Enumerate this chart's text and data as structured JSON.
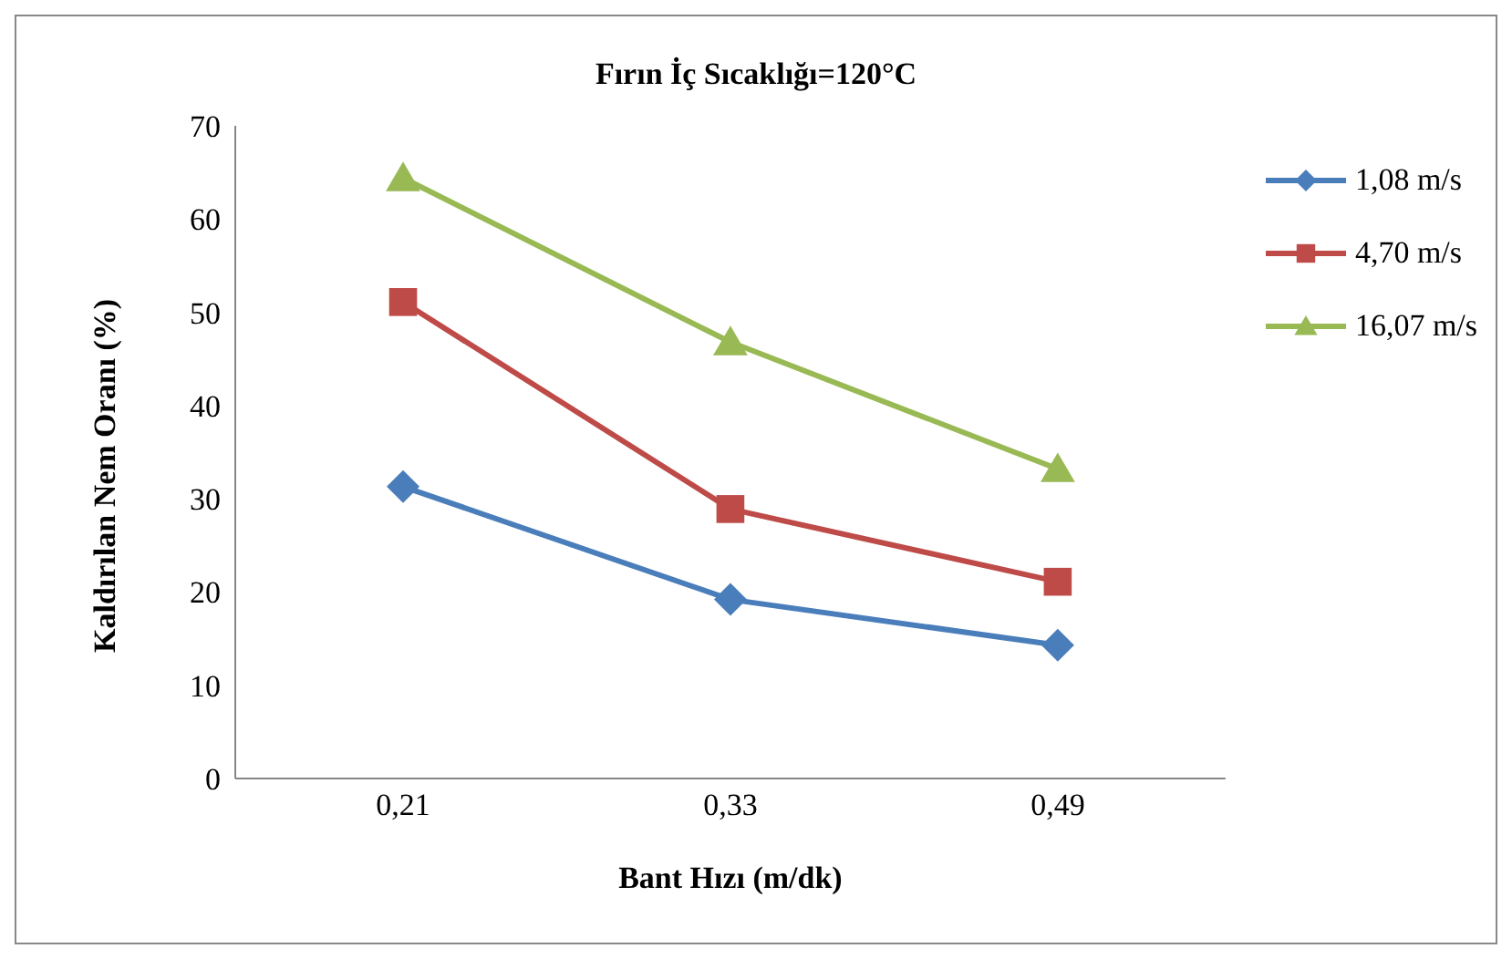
{
  "chart_data": {
    "type": "line",
    "title": "Fırın İç Sıcaklığı=120°C",
    "xlabel": "Bant Hızı (m/dk)",
    "ylabel": "Kaldırılan Nem Oranı (%)",
    "categories": [
      "0,21",
      "0,33",
      "0,49"
    ],
    "series": [
      {
        "name": "1,08 m/s",
        "color": "#4a7ebb",
        "marker": "diamond",
        "values": [
          31.3,
          19.2,
          14.3
        ]
      },
      {
        "name": "4,70 m/s",
        "color": "#be4b48",
        "marker": "square",
        "values": [
          51.1,
          28.9,
          21.1
        ]
      },
      {
        "name": "16,07 m/s",
        "color": "#98b954",
        "marker": "triangle",
        "values": [
          64.4,
          46.8,
          33.2
        ]
      }
    ],
    "ylim": [
      0,
      70
    ],
    "yticks": [
      0,
      10,
      20,
      30,
      40,
      50,
      60,
      70
    ],
    "grid": false,
    "legend": "top right"
  }
}
